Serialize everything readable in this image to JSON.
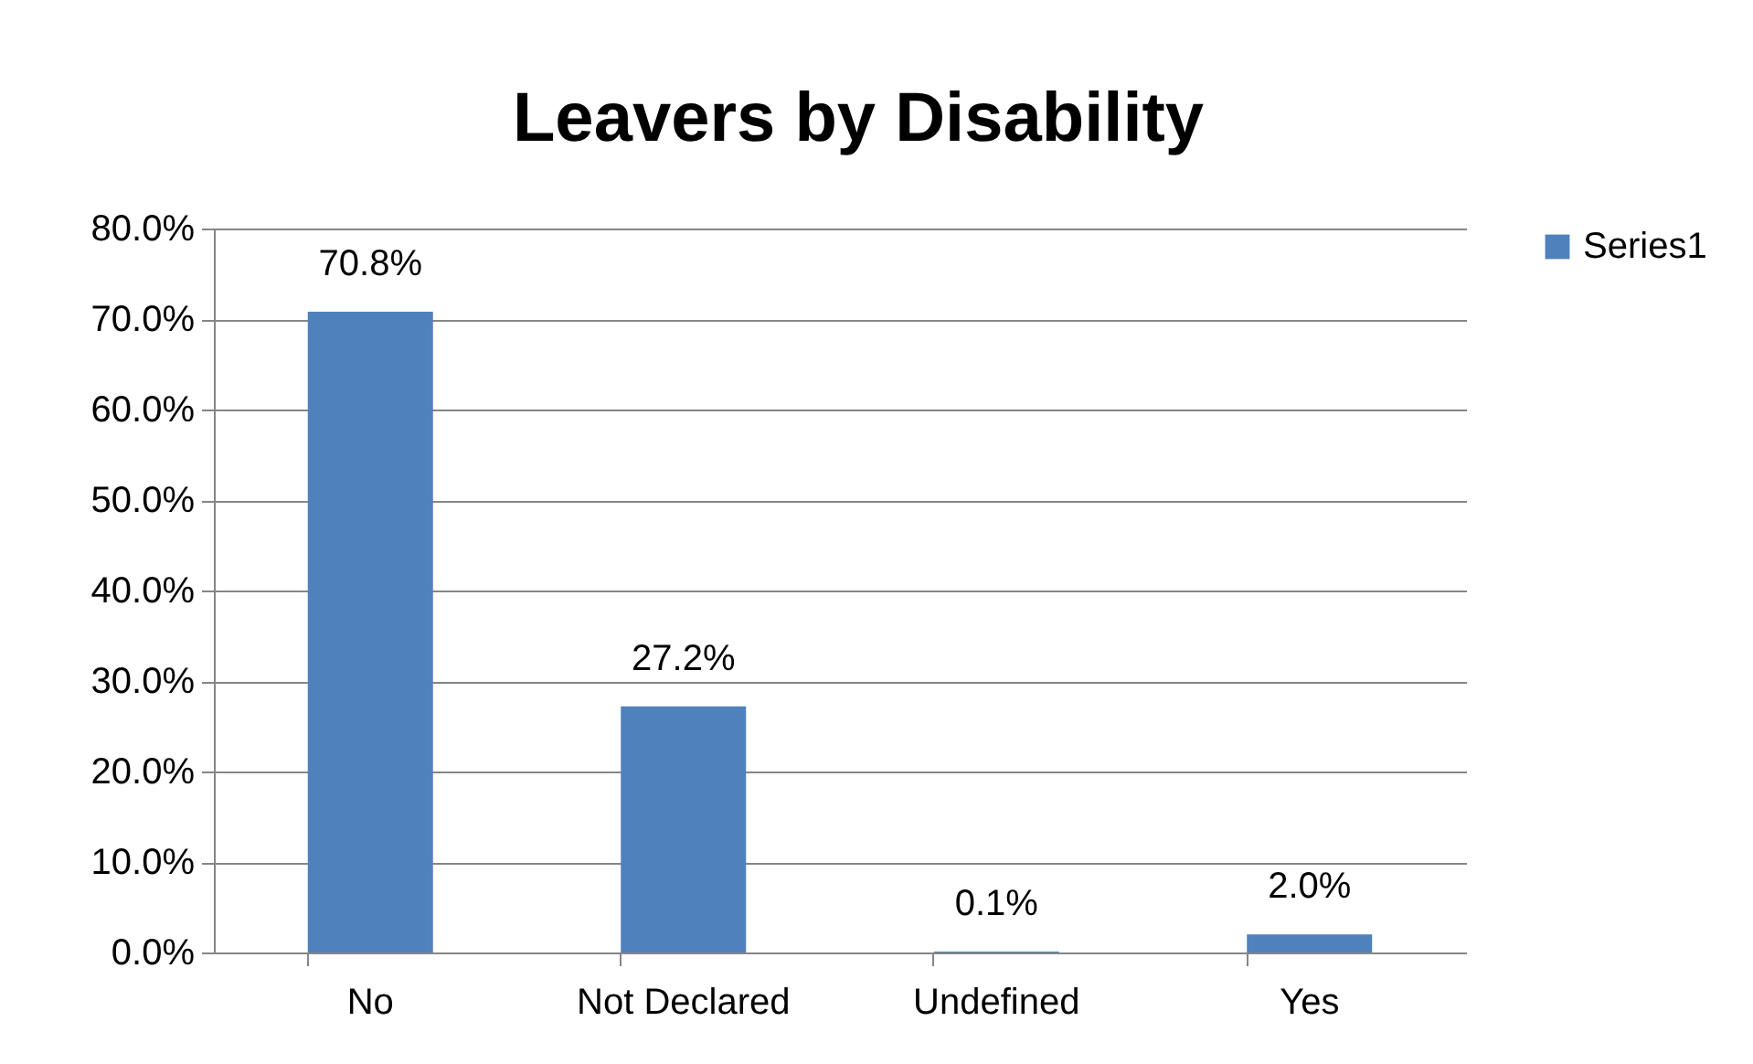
{
  "chart_data": {
    "type": "bar",
    "title": "Leavers by Disability",
    "categories": [
      "No",
      "Not Declared",
      "Undefined",
      "Yes"
    ],
    "series": [
      {
        "name": "Series1",
        "color": "#4f81bd",
        "values": [
          70.8,
          27.2,
          0.1,
          2.0
        ],
        "value_labels": [
          "70.8%",
          "27.2%",
          "0.1%",
          "2.0%"
        ]
      }
    ],
    "ylim": [
      0,
      80
    ],
    "yticks": [
      {
        "value": 0,
        "label": "0.0%"
      },
      {
        "value": 10,
        "label": "10.0%"
      },
      {
        "value": 20,
        "label": "20.0%"
      },
      {
        "value": 30,
        "label": "30.0%"
      },
      {
        "value": 40,
        "label": "40.0%"
      },
      {
        "value": 50,
        "label": "50.0%"
      },
      {
        "value": 60,
        "label": "60.0%"
      },
      {
        "value": 70,
        "label": "70.0%"
      },
      {
        "value": 80,
        "label": "80.0%"
      }
    ],
    "grid": "y",
    "legend": "right"
  }
}
